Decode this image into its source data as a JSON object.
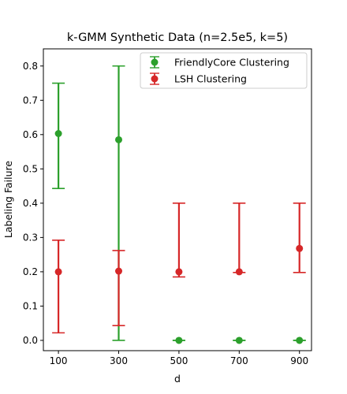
{
  "chart_data": {
    "type": "scatter",
    "title": "k-GMM Synthetic Data (n=2.5e5, k=5)",
    "xlabel": "d",
    "ylabel": "Labeling Failure",
    "categories": [
      "100",
      "300",
      "500",
      "700",
      "900"
    ],
    "xlim": [
      50,
      940
    ],
    "ylim": [
      -0.03,
      0.85
    ],
    "yticks": [
      0.0,
      0.1,
      0.2,
      0.3,
      0.4,
      0.5,
      0.6,
      0.7,
      0.8
    ],
    "ytick_labels": [
      "0.0",
      "0.1",
      "0.2",
      "0.3",
      "0.4",
      "0.5",
      "0.6",
      "0.7",
      "0.8"
    ],
    "grid": false,
    "legend_position": "upper right",
    "series": [
      {
        "name": "FriendlyCore Clustering",
        "color": "#2ca02c",
        "x": [
          100,
          300,
          500,
          700,
          900
        ],
        "y": [
          0.603,
          0.585,
          0.0,
          0.0,
          0.0
        ],
        "err_low": [
          0.443,
          0.0,
          0.0,
          0.0,
          0.0
        ],
        "err_high": [
          0.75,
          0.8,
          0.0,
          0.0,
          0.0
        ]
      },
      {
        "name": "LSH Clustering",
        "color": "#d62728",
        "x": [
          100,
          300,
          500,
          700,
          900
        ],
        "y": [
          0.2,
          0.202,
          0.2,
          0.2,
          0.268
        ],
        "err_low": [
          0.022,
          0.043,
          0.185,
          0.198,
          0.198
        ],
        "err_high": [
          0.292,
          0.262,
          0.4,
          0.4,
          0.4
        ]
      }
    ]
  }
}
